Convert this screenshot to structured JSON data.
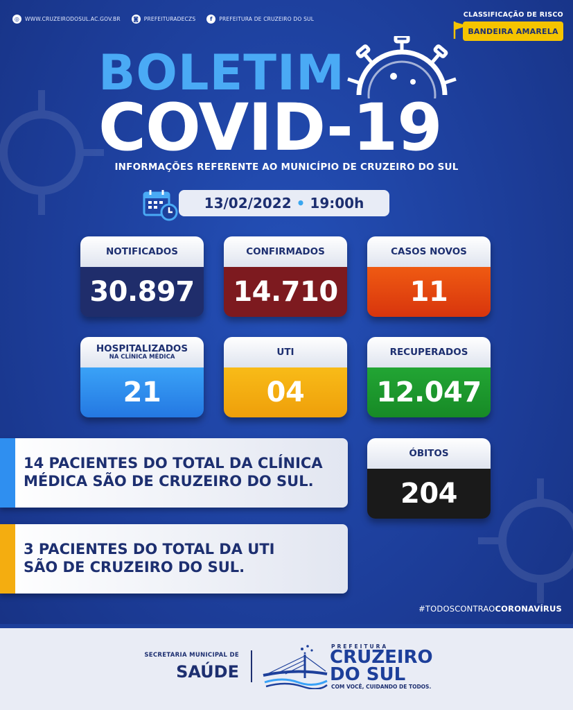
{
  "header": {
    "social": [
      {
        "icon": "globe-icon",
        "text": "WWW.CRUZEIRODOSUL.AC.GOV.BR"
      },
      {
        "icon": "instagram-icon",
        "text": "PREFEITURADECZS"
      },
      {
        "icon": "facebook-icon",
        "text": "PREFEITURA DE CRUZEIRO DO SUL"
      }
    ],
    "risk_label": "CLASSIFICAÇÃO DE RISCO",
    "risk_value": "BANDEIRA AMARELA",
    "title_line1": "BOLETIM",
    "title_line2": "COVID-19",
    "subtitle": "INFORMAÇÕES REFERENTE AO MUNICÍPIO DE CRUZEIRO DO SUL",
    "date": "13/02/2022",
    "separator": "•",
    "time": "19:00h"
  },
  "stats": {
    "notificados": {
      "label": "NOTIFICADOS",
      "value": "30.897",
      "color": "#1f2d6b"
    },
    "confirmados": {
      "label": "CONFIRMADOS",
      "value": "14.710",
      "color": "#7d1a1f"
    },
    "casos_novos": {
      "label": "CASOS NOVOS",
      "value": "11",
      "color": "#e2440e"
    },
    "hospitalizados": {
      "label": "HOSPITALIZADOS",
      "sublabel": "NA CLÍNICA MÉDICA",
      "value": "21",
      "color": "#2f8ff0"
    },
    "uti": {
      "label": "UTI",
      "value": "04",
      "color": "#f4ad10"
    },
    "recuperados": {
      "label": "RECUPERADOS",
      "value": "12.047",
      "color": "#1e9b2e"
    },
    "obitos": {
      "label": "ÓBITOS",
      "value": "204",
      "color": "#1a1a1a"
    }
  },
  "notes": {
    "clinica_line1": "14 PACIENTES DO TOTAL DA CLÍNICA",
    "clinica_line2": "MÉDICA SÃO DE CRUZEIRO DO SUL.",
    "uti_line1": "3 PACIENTES DO TOTAL DA UTI",
    "uti_line2": "SÃO DE CRUZEIRO DO SUL."
  },
  "hashtag": {
    "prefix": "#TODOSCONTRAO",
    "bold": "CORONAVÍRUS"
  },
  "footer": {
    "secretaria": "SECRETARIA MUNICIPAL DE",
    "saude": "SAÚDE",
    "prefeitura": "PREFEITURA",
    "city_line1": "CRUZEIRO",
    "city_line2": "DO SUL",
    "slogan": "COM VOCÊ, CUIDANDO DE TODOS."
  }
}
